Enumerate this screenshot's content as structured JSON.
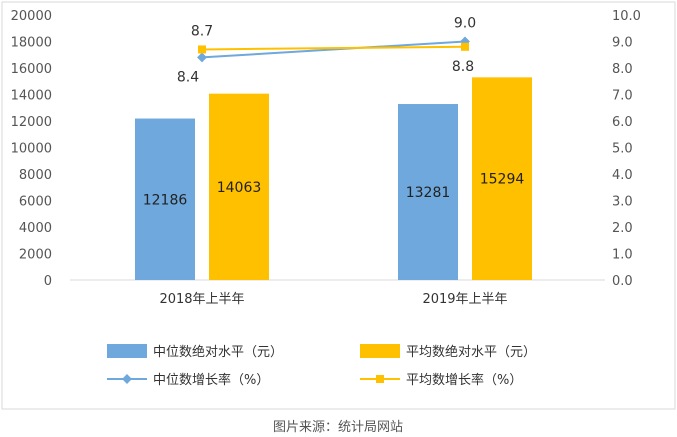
{
  "caption": "图片来源：统计局网站",
  "chart_data": {
    "type": "bar",
    "categories": [
      "2018年上半年",
      "2019年上半年"
    ],
    "y_left": {
      "min": 0,
      "max": 20000,
      "step": 2000,
      "ticks": [
        "0",
        "2000",
        "4000",
        "6000",
        "8000",
        "10000",
        "12000",
        "14000",
        "16000",
        "18000",
        "20000"
      ]
    },
    "y_right": {
      "min": 0,
      "max": 10,
      "step": 1,
      "ticks": [
        "0.0",
        "1.0",
        "2.0",
        "3.0",
        "4.0",
        "5.0",
        "6.0",
        "7.0",
        "8.0",
        "9.0",
        "10.0"
      ]
    },
    "bar_series": [
      {
        "name": "中位数绝对水平（元）",
        "color": "#6fa8dc",
        "values": [
          12186,
          13281
        ],
        "labels": [
          "12186",
          "13281"
        ]
      },
      {
        "name": "平均数绝对水平（元）",
        "color": "#ffc000",
        "values": [
          14063,
          15294
        ],
        "labels": [
          "14063",
          "15294"
        ]
      }
    ],
    "line_series": [
      {
        "name": "中位数增长率（%）",
        "color": "#6fa8dc",
        "marker": "diamond",
        "values": [
          8.4,
          9.0
        ],
        "labels": [
          "8.4",
          "9.0"
        ]
      },
      {
        "name": "平均数增长率（%）",
        "color": "#ffc000",
        "marker": "square",
        "values": [
          8.7,
          8.8
        ],
        "labels": [
          "8.7",
          "8.8"
        ]
      }
    ],
    "legend_position": "bottom",
    "grid": false
  }
}
